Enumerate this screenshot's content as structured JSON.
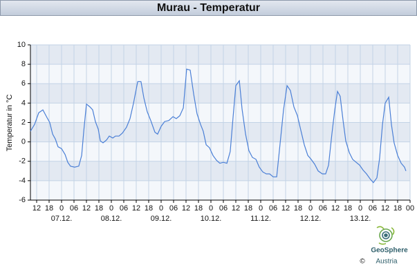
{
  "chart_data": {
    "type": "line",
    "title": "Murau - Temperatur",
    "y_label": "Temperatur in °C",
    "x": [
      -15,
      -13,
      -11,
      -9,
      -7,
      -5.7,
      -4.3,
      -3,
      -1.7,
      0,
      1.7,
      3,
      4.3,
      6.3,
      8.3,
      9.7,
      10.7,
      12,
      13.7,
      15,
      16.3,
      17.7,
      18.7,
      20,
      21.7,
      23,
      24.7,
      26,
      27.7,
      29.3,
      31.3,
      33,
      34.7,
      36.7,
      38.3,
      39.7,
      41.3,
      43,
      45,
      46.3,
      48,
      49.7,
      51.7,
      53.7,
      55.3,
      57,
      58.7,
      60.3,
      62,
      63.7,
      65.3,
      67,
      68.3,
      69.7,
      71.3,
      73,
      74.7,
      76.3,
      78,
      79.7,
      81.3,
      82.7,
      84,
      85.7,
      87,
      88.7,
      90.3,
      92,
      93.7,
      95.3,
      97,
      98.7,
      100.3,
      102,
      103.7,
      105,
      107,
      108.7,
      110.3,
      112,
      113.7,
      115,
      117,
      118.7,
      120.3,
      122,
      123.7,
      125.7,
      127.3,
      128.7,
      130.3,
      131.7,
      133,
      134.3,
      135.7,
      137,
      138.7,
      140.3,
      142,
      143.7,
      145.3,
      147,
      148.7,
      150.3,
      152,
      153.3,
      154.7,
      156,
      157.7,
      159,
      160.3,
      162,
      163.7,
      165.3,
      166
    ],
    "values": [
      1.1,
      1.8,
      3.0,
      3.3,
      2.5,
      2.0,
      0.8,
      0.3,
      -0.5,
      -0.7,
      -1.3,
      -2.1,
      -2.5,
      -2.6,
      -2.5,
      -1.4,
      1.1,
      3.9,
      3.6,
      3.3,
      2.1,
      1.3,
      0.1,
      -0.1,
      0.2,
      0.6,
      0.4,
      0.6,
      0.6,
      0.9,
      1.5,
      2.4,
      4.0,
      6.2,
      6.2,
      4.5,
      3.1,
      2.2,
      1.0,
      0.8,
      1.6,
      2.1,
      2.2,
      2.6,
      2.4,
      2.7,
      3.5,
      7.5,
      7.4,
      4.9,
      2.9,
      1.8,
      1.1,
      -0.3,
      -0.6,
      -1.4,
      -1.9,
      -2.2,
      -2.1,
      -2.2,
      -1.0,
      2.6,
      5.8,
      6.3,
      3.4,
      0.8,
      -0.9,
      -1.6,
      -1.8,
      -2.6,
      -3.1,
      -3.3,
      -3.3,
      -3.6,
      -3.6,
      -0.9,
      3.3,
      5.8,
      5.3,
      3.6,
      2.7,
      1.5,
      -0.3,
      -1.4,
      -1.8,
      -2.3,
      -3.0,
      -3.3,
      -3.3,
      -2.4,
      0.8,
      3.3,
      5.2,
      4.7,
      2.2,
      0.1,
      -1.1,
      -1.8,
      -2.1,
      -2.4,
      -2.9,
      -3.3,
      -3.8,
      -4.2,
      -3.7,
      -1.7,
      1.8,
      4.0,
      4.6,
      1.8,
      -0.1,
      -1.4,
      -2.2,
      -2.6,
      -3.0
    ],
    "color": "#4a7fd6",
    "xlim": [
      -15,
      168
    ],
    "xticks": [
      {
        "value": -12,
        "label": "12"
      },
      {
        "value": -6,
        "label": "18"
      },
      {
        "value": 0,
        "label": "0"
      },
      {
        "value": 6,
        "label": "06"
      },
      {
        "value": 12,
        "label": "12"
      },
      {
        "value": 18,
        "label": "18"
      },
      {
        "value": 24,
        "label": "0"
      },
      {
        "value": 30,
        "label": "06"
      },
      {
        "value": 36,
        "label": "12"
      },
      {
        "value": 42,
        "label": "18"
      },
      {
        "value": 48,
        "label": "0"
      },
      {
        "value": 54,
        "label": "06"
      },
      {
        "value": 60,
        "label": "12"
      },
      {
        "value": 66,
        "label": "18"
      },
      {
        "value": 72,
        "label": "0"
      },
      {
        "value": 78,
        "label": "06"
      },
      {
        "value": 84,
        "label": "12"
      },
      {
        "value": 90,
        "label": "18"
      },
      {
        "value": 96,
        "label": "0"
      },
      {
        "value": 102,
        "label": "06"
      },
      {
        "value": 108,
        "label": "12"
      },
      {
        "value": 114,
        "label": "18"
      },
      {
        "value": 120,
        "label": "0"
      },
      {
        "value": 126,
        "label": "06"
      },
      {
        "value": 132,
        "label": "12"
      },
      {
        "value": 138,
        "label": "18"
      },
      {
        "value": 144,
        "label": "0"
      },
      {
        "value": 150,
        "label": "06"
      },
      {
        "value": 156,
        "label": "12"
      },
      {
        "value": 162,
        "label": "18"
      },
      {
        "value": 168,
        "label": "00"
      }
    ],
    "date_ticks": [
      {
        "value": 0,
        "label": "07.12."
      },
      {
        "value": 24,
        "label": "08.12."
      },
      {
        "value": 48,
        "label": "09.12."
      },
      {
        "value": 72,
        "label": "10.12."
      },
      {
        "value": 96,
        "label": "11.12."
      },
      {
        "value": 120,
        "label": "12.12."
      },
      {
        "value": 144,
        "label": "13.12."
      }
    ],
    "ylim": [
      -6,
      10
    ],
    "yticks": [
      -6,
      -4,
      -2,
      0,
      2,
      4,
      6,
      8,
      10
    ],
    "grid": true
  },
  "logo": {
    "name": "GeoSphere",
    "sub": "Austria",
    "copyright": "©"
  }
}
